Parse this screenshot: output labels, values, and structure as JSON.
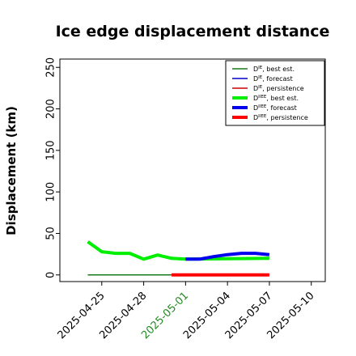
{
  "chart_data": {
    "type": "line",
    "title": "Ice edge displacement distance",
    "xlabel": "",
    "ylabel": "Displacement (km)",
    "ylim": [
      -8,
      260
    ],
    "xlim": [
      "2025-04-22",
      "2025-05-11"
    ],
    "yticks": [
      0,
      50,
      100,
      150,
      200,
      250
    ],
    "xticks": [
      "2025-04-25",
      "2025-04-28",
      "2025-05-01",
      "2025-05-04",
      "2025-05-07",
      "2025-05-10"
    ],
    "highlighted_xtick": "2025-05-01",
    "highlight_color": "#228b22",
    "legend_position": "top-right",
    "grid": false,
    "series": [
      {
        "name": "D^IE, best est.",
        "legend_base": "D",
        "legend_sup": "IE",
        "legend_suffix": ", best est.",
        "color": "#1a7a1a",
        "width": 1.5,
        "x": [
          "2025-04-24",
          "2025-04-25",
          "2025-04-26",
          "2025-04-27",
          "2025-04-28",
          "2025-04-29",
          "2025-04-30",
          "2025-05-01"
        ],
        "y": [
          0,
          0,
          0,
          0,
          0,
          0,
          0,
          0
        ]
      },
      {
        "name": "D^IE, forecast",
        "legend_base": "D",
        "legend_sup": "IE",
        "legend_suffix": ", forecast",
        "color": "#0000cc",
        "width": 1.5,
        "x": [
          "2025-05-01",
          "2025-05-02",
          "2025-05-03",
          "2025-05-04",
          "2025-05-05",
          "2025-05-06",
          "2025-05-07"
        ],
        "y": [
          0,
          0,
          0,
          0,
          0,
          0,
          0
        ]
      },
      {
        "name": "D^IE, persistence",
        "legend_base": "D",
        "legend_sup": "IE",
        "legend_suffix": ", persistence",
        "color": "#cc0000",
        "width": 1.5,
        "x": [
          "2025-04-30",
          "2025-05-07"
        ],
        "y": [
          0,
          0
        ]
      },
      {
        "name": "D^IIEE, best est.",
        "legend_base": "D",
        "legend_sup": "IIEE",
        "legend_suffix": ", best est.",
        "color": "#00ee00",
        "width": 4,
        "x": [
          "2025-04-24",
          "2025-04-25",
          "2025-04-26",
          "2025-04-27",
          "2025-04-28",
          "2025-04-29",
          "2025-04-30",
          "2025-05-01",
          "2025-05-07"
        ],
        "y": [
          40,
          28,
          26,
          26,
          19,
          24,
          20,
          19,
          20
        ]
      },
      {
        "name": "D^IIEE, forecast",
        "legend_base": "D",
        "legend_sup": "IIEE",
        "legend_suffix": ", forecast",
        "color": "#0000ee",
        "width": 4,
        "x": [
          "2025-05-01",
          "2025-05-02",
          "2025-05-03",
          "2025-05-04",
          "2025-05-05",
          "2025-05-06",
          "2025-05-07"
        ],
        "y": [
          19,
          19,
          22,
          24.5,
          26,
          26,
          24.5
        ]
      },
      {
        "name": "D^IIEE, persistence",
        "legend_base": "D",
        "legend_sup": "IIEE",
        "legend_suffix": ", persistence",
        "color": "#ff0000",
        "width": 4,
        "x": [
          "2025-04-30",
          "2025-05-07"
        ],
        "y": [
          0,
          0
        ]
      }
    ]
  }
}
